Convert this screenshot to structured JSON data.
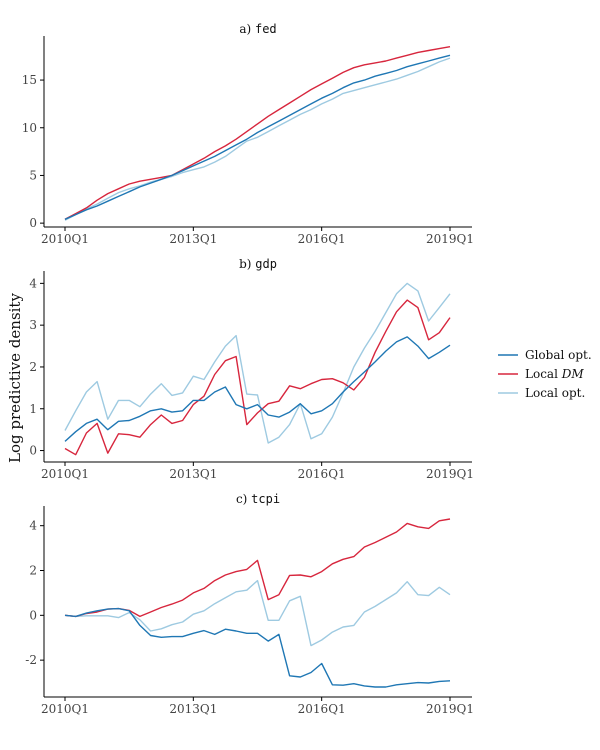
{
  "y_axis_title": "Log predictive density",
  "legend": [
    {
      "name": "Global opt.",
      "color": "#1f77b4"
    },
    {
      "name": "Local DM",
      "color": "#d7263d"
    },
    {
      "name": "Local opt.",
      "color": "#9ecae1"
    }
  ],
  "legend_math": {
    "prefix": "Local ",
    "math": "DM"
  },
  "chart_data": [
    {
      "type": "line",
      "panel_prefix": "a) ",
      "panel_var": "fed",
      "x_ticks": [
        "2010Q1",
        "2013Q1",
        "2016Q1",
        "2019Q1"
      ],
      "ylim": [
        -0.3,
        19.2
      ],
      "y_ticks": [
        0,
        5,
        10,
        15
      ],
      "n_points": 37,
      "series": [
        {
          "name": "Global opt.",
          "values": [
            0.4,
            0.9,
            1.4,
            1.8,
            2.3,
            2.8,
            3.3,
            3.8,
            4.2,
            4.6,
            5.0,
            5.5,
            6.0,
            6.5,
            7.0,
            7.6,
            8.2,
            8.8,
            9.5,
            10.1,
            10.7,
            11.3,
            11.9,
            12.5,
            13.1,
            13.6,
            14.2,
            14.7,
            15.0,
            15.4,
            15.7,
            16.0,
            16.4,
            16.7,
            17.0,
            17.3,
            17.6
          ]
        },
        {
          "name": "Local DM",
          "values": [
            0.4,
            1.0,
            1.6,
            2.4,
            3.1,
            3.6,
            4.1,
            4.4,
            4.6,
            4.8,
            5.0,
            5.6,
            6.2,
            6.8,
            7.5,
            8.1,
            8.8,
            9.6,
            10.4,
            11.2,
            11.9,
            12.6,
            13.3,
            14.0,
            14.6,
            15.2,
            15.8,
            16.3,
            16.6,
            16.8,
            17.0,
            17.3,
            17.6,
            17.9,
            18.1,
            18.3,
            18.5
          ]
        },
        {
          "name": "Local opt.",
          "values": [
            0.3,
            0.9,
            1.5,
            2.0,
            2.6,
            3.2,
            3.6,
            3.9,
            4.3,
            4.6,
            4.9,
            5.3,
            5.6,
            5.9,
            6.4,
            7.0,
            7.8,
            8.6,
            9.0,
            9.6,
            10.2,
            10.8,
            11.4,
            11.9,
            12.5,
            13.0,
            13.6,
            13.9,
            14.2,
            14.5,
            14.8,
            15.1,
            15.5,
            15.9,
            16.4,
            16.9,
            17.3
          ]
        }
      ]
    },
    {
      "type": "line",
      "panel_prefix": "b) ",
      "panel_var": "gdp",
      "x_ticks": [
        "2010Q1",
        "2013Q1",
        "2016Q1",
        "2019Q1"
      ],
      "ylim": [
        -0.25,
        4.2
      ],
      "y_ticks": [
        0,
        1,
        2,
        3,
        4
      ],
      "n_points": 37,
      "series": [
        {
          "name": "Global opt.",
          "values": [
            0.22,
            0.45,
            0.65,
            0.75,
            0.5,
            0.7,
            0.72,
            0.82,
            0.95,
            1.0,
            0.92,
            0.95,
            1.2,
            1.2,
            1.4,
            1.52,
            1.1,
            1.0,
            1.1,
            0.85,
            0.8,
            0.92,
            1.12,
            0.88,
            0.95,
            1.12,
            1.4,
            1.65,
            1.88,
            2.12,
            2.38,
            2.6,
            2.72,
            2.5,
            2.2,
            2.35,
            2.52
          ]
        },
        {
          "name": "Local DM",
          "values": [
            0.05,
            -0.1,
            0.42,
            0.65,
            -0.06,
            0.4,
            0.38,
            0.32,
            0.62,
            0.85,
            0.65,
            0.72,
            1.1,
            1.3,
            1.82,
            2.15,
            2.25,
            0.62,
            0.9,
            1.12,
            1.18,
            1.55,
            1.48,
            1.6,
            1.7,
            1.72,
            1.62,
            1.45,
            1.75,
            2.35,
            2.85,
            3.32,
            3.6,
            3.42,
            2.65,
            2.82,
            3.18
          ]
        },
        {
          "name": "Local opt.",
          "values": [
            0.48,
            0.95,
            1.4,
            1.65,
            0.75,
            1.2,
            1.2,
            1.05,
            1.35,
            1.6,
            1.32,
            1.38,
            1.78,
            1.7,
            2.12,
            2.5,
            2.75,
            1.35,
            1.33,
            0.18,
            0.32,
            0.62,
            1.12,
            0.28,
            0.4,
            0.8,
            1.38,
            2.0,
            2.45,
            2.85,
            3.3,
            3.75,
            4.0,
            3.82,
            3.1,
            3.42,
            3.75
          ]
        }
      ]
    },
    {
      "type": "line",
      "panel_prefix": "c) ",
      "panel_var": "tcpi",
      "x_ticks": [
        "2010Q1",
        "2013Q1",
        "2016Q1",
        "2019Q1"
      ],
      "ylim": [
        -3.6,
        4.7
      ],
      "y_ticks": [
        -2,
        0,
        2,
        4
      ],
      "n_points": 37,
      "series": [
        {
          "name": "Global opt.",
          "values": [
            0.0,
            -0.05,
            0.1,
            0.2,
            0.28,
            0.3,
            0.2,
            -0.45,
            -0.9,
            -0.98,
            -0.95,
            -0.95,
            -0.8,
            -0.68,
            -0.85,
            -0.62,
            -0.7,
            -0.8,
            -0.8,
            -1.15,
            -0.85,
            -2.7,
            -2.75,
            -2.55,
            -2.15,
            -3.1,
            -3.12,
            -3.05,
            -3.15,
            -3.2,
            -3.2,
            -3.1,
            -3.05,
            -3.0,
            -3.02,
            -2.95,
            -2.92
          ]
        },
        {
          "name": "Local DM",
          "values": [
            0.0,
            -0.05,
            0.08,
            0.15,
            0.28,
            0.3,
            0.22,
            -0.05,
            0.15,
            0.35,
            0.5,
            0.68,
            1.0,
            1.2,
            1.55,
            1.8,
            1.95,
            2.05,
            2.45,
            0.7,
            0.92,
            1.78,
            1.8,
            1.72,
            1.95,
            2.3,
            2.5,
            2.62,
            3.05,
            3.25,
            3.48,
            3.72,
            4.1,
            3.95,
            3.88,
            4.22,
            4.3
          ]
        },
        {
          "name": "Local opt.",
          "values": [
            0.0,
            -0.05,
            -0.02,
            -0.02,
            -0.02,
            -0.1,
            0.12,
            -0.2,
            -0.7,
            -0.6,
            -0.42,
            -0.3,
            0.05,
            0.2,
            0.52,
            0.78,
            1.05,
            1.12,
            1.55,
            -0.22,
            -0.22,
            0.65,
            0.85,
            -1.35,
            -1.1,
            -0.75,
            -0.52,
            -0.45,
            0.15,
            0.4,
            0.7,
            1.0,
            1.5,
            0.92,
            0.88,
            1.25,
            0.92
          ]
        }
      ]
    }
  ]
}
